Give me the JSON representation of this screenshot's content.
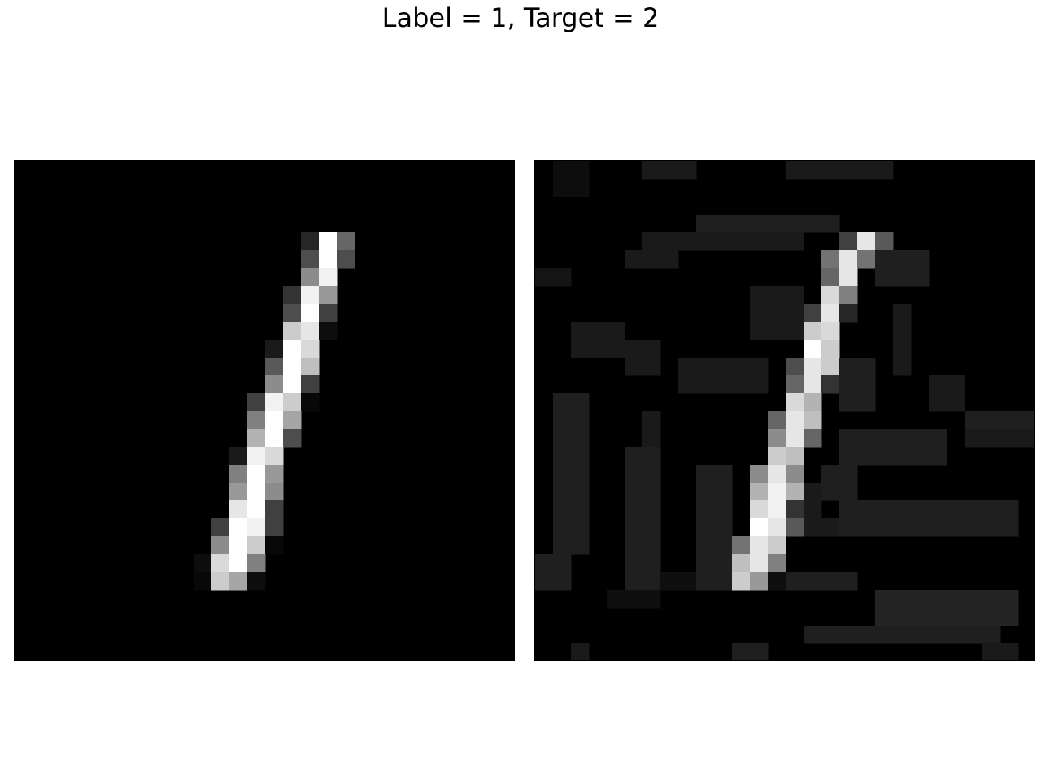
{
  "title": "Label = 1, Target = 2",
  "colormap": "gray",
  "grid_size": 28,
  "images": [
    {
      "name": "original-digit",
      "pixels": {
        "4": {
          "16": 0.15,
          "17": 1.0,
          "18": 0.4
        },
        "5": {
          "16": 0.3,
          "17": 1.0,
          "18": 0.3
        },
        "6": {
          "16": 0.55,
          "17": 0.95
        },
        "7": {
          "15": 0.2,
          "16": 0.95,
          "17": 0.6
        },
        "8": {
          "15": 0.3,
          "16": 1.0,
          "17": 0.25
        },
        "9": {
          "15": 0.8,
          "16": 0.9,
          "17": 0.05
        },
        "10": {
          "14": 0.1,
          "15": 1.0,
          "16": 0.85
        },
        "11": {
          "14": 0.35,
          "15": 1.0,
          "16": 0.75
        },
        "12": {
          "14": 0.55,
          "15": 1.0,
          "16": 0.25
        },
        "13": {
          "13": 0.25,
          "14": 0.95,
          "15": 0.8,
          "16": 0.03
        },
        "14": {
          "13": 0.5,
          "14": 1.0,
          "15": 0.65
        },
        "15": {
          "13": 0.7,
          "14": 1.0,
          "15": 0.3
        },
        "16": {
          "12": 0.1,
          "13": 0.95,
          "14": 0.85
        },
        "17": {
          "12": 0.5,
          "13": 1.0,
          "14": 0.6
        },
        "18": {
          "12": 0.6,
          "13": 1.0,
          "14": 0.55
        },
        "19": {
          "12": 0.9,
          "13": 1.0,
          "14": 0.25
        },
        "20": {
          "11": 0.25,
          "12": 1.0,
          "13": 0.95,
          "14": 0.25
        },
        "21": {
          "11": 0.55,
          "12": 1.0,
          "13": 0.8,
          "14": 0.03
        },
        "22": {
          "10": 0.05,
          "11": 0.85,
          "12": 1.0,
          "13": 0.5
        },
        "23": {
          "10": 0.03,
          "11": 0.8,
          "12": 0.65,
          "13": 0.05
        }
      }
    },
    {
      "name": "adversarial-digit",
      "pixels": {
        "4": {
          "17": 0.25,
          "18": 0.9,
          "19": 0.35
        },
        "5": {
          "16": 0.45,
          "17": 0.9,
          "18": 0.45
        },
        "6": {
          "16": 0.4,
          "17": 0.9
        },
        "7": {
          "16": 0.85,
          "17": 0.5
        },
        "8": {
          "15": 0.25,
          "16": 0.9,
          "17": 0.15
        },
        "9": {
          "15": 0.8,
          "16": 0.85
        },
        "10": {
          "15": 1.0,
          "16": 0.8
        },
        "11": {
          "14": 0.3,
          "15": 0.9,
          "16": 0.8
        },
        "12": {
          "14": 0.4,
          "15": 0.9,
          "16": 0.2
        },
        "13": {
          "14": 0.85,
          "15": 0.7
        },
        "14": {
          "13": 0.4,
          "14": 0.9,
          "15": 0.75
        },
        "15": {
          "13": 0.55,
          "14": 0.9,
          "15": 0.4
        },
        "16": {
          "13": 0.8,
          "14": 0.75
        },
        "17": {
          "12": 0.55,
          "13": 0.9,
          "14": 0.55
        },
        "18": {
          "12": 0.7,
          "13": 0.95,
          "14": 0.7
        },
        "19": {
          "12": 0.85,
          "13": 0.95,
          "14": 0.2
        },
        "20": {
          "12": 1.0,
          "13": 0.9,
          "14": 0.35
        },
        "21": {
          "11": 0.45,
          "12": 0.9,
          "13": 0.8
        },
        "22": {
          "11": 0.75,
          "12": 0.9,
          "13": 0.5
        },
        "23": {
          "11": 0.8,
          "12": 0.6
        }
      },
      "noise": [
        {
          "r0": 0,
          "r1": 0,
          "c0": 6,
          "c1": 8,
          "v": 0.1
        },
        {
          "r0": 0,
          "r1": 0,
          "c0": 14,
          "c1": 19,
          "v": 0.1
        },
        {
          "r0": 0,
          "r1": 1,
          "c0": 1,
          "c1": 2,
          "v": 0.05
        },
        {
          "r0": 3,
          "r1": 3,
          "c0": 9,
          "c1": 16,
          "v": 0.12
        },
        {
          "r0": 4,
          "r1": 4,
          "c0": 6,
          "c1": 14,
          "v": 0.1
        },
        {
          "r0": 5,
          "r1": 6,
          "c0": 19,
          "c1": 21,
          "v": 0.12
        },
        {
          "r0": 5,
          "r1": 5,
          "c0": 5,
          "c1": 7,
          "v": 0.1
        },
        {
          "r0": 6,
          "r1": 6,
          "c0": 0,
          "c1": 1,
          "v": 0.08
        },
        {
          "r0": 7,
          "r1": 9,
          "c0": 12,
          "c1": 14,
          "v": 0.1
        },
        {
          "r0": 8,
          "r1": 11,
          "c0": 20,
          "c1": 20,
          "v": 0.1
        },
        {
          "r0": 9,
          "r1": 10,
          "c0": 2,
          "c1": 4,
          "v": 0.1
        },
        {
          "r0": 10,
          "r1": 11,
          "c0": 5,
          "c1": 6,
          "v": 0.1
        },
        {
          "r0": 11,
          "r1": 12,
          "c0": 8,
          "c1": 12,
          "v": 0.1
        },
        {
          "r0": 11,
          "r1": 13,
          "c0": 17,
          "c1": 18,
          "v": 0.12
        },
        {
          "r0": 12,
          "r1": 13,
          "c0": 22,
          "c1": 23,
          "v": 0.1
        },
        {
          "r0": 13,
          "r1": 21,
          "c0": 1,
          "c1": 2,
          "v": 0.12
        },
        {
          "r0": 14,
          "r1": 14,
          "c0": 24,
          "c1": 27,
          "v": 0.12
        },
        {
          "r0": 15,
          "r1": 15,
          "c0": 24,
          "c1": 27,
          "v": 0.1
        },
        {
          "r0": 14,
          "r1": 16,
          "c0": 6,
          "c1": 6,
          "v": 0.1
        },
        {
          "r0": 15,
          "r1": 16,
          "c0": 17,
          "c1": 22,
          "v": 0.12
        },
        {
          "r0": 16,
          "r1": 23,
          "c0": 5,
          "c1": 6,
          "v": 0.12
        },
        {
          "r0": 17,
          "r1": 18,
          "c0": 16,
          "c1": 17,
          "v": 0.12
        },
        {
          "r0": 17,
          "r1": 23,
          "c0": 9,
          "c1": 10,
          "v": 0.12
        },
        {
          "r0": 18,
          "r1": 19,
          "c0": 15,
          "c1": 15,
          "v": 0.1
        },
        {
          "r0": 19,
          "r1": 20,
          "c0": 17,
          "c1": 26,
          "v": 0.12
        },
        {
          "r0": 20,
          "r1": 20,
          "c0": 15,
          "c1": 16,
          "v": 0.1
        },
        {
          "r0": 22,
          "r1": 23,
          "c0": 0,
          "c1": 1,
          "v": 0.12
        },
        {
          "r0": 23,
          "r1": 23,
          "c0": 6,
          "c1": 14,
          "v": 0.06
        },
        {
          "r0": 23,
          "r1": 23,
          "c0": 14,
          "c1": 17,
          "v": 0.12
        },
        {
          "r0": 24,
          "r1": 24,
          "c0": 4,
          "c1": 6,
          "v": 0.06
        },
        {
          "r0": 24,
          "r1": 25,
          "c0": 19,
          "c1": 26,
          "v": 0.14
        },
        {
          "r0": 26,
          "r1": 26,
          "c0": 15,
          "c1": 25,
          "v": 0.12
        },
        {
          "r0": 27,
          "r1": 27,
          "c0": 11,
          "c1": 12,
          "v": 0.12
        },
        {
          "r0": 27,
          "r1": 27,
          "c0": 2,
          "c1": 2,
          "v": 0.1
        },
        {
          "r0": 27,
          "r1": 27,
          "c0": 25,
          "c1": 26,
          "v": 0.1
        }
      ]
    }
  ]
}
